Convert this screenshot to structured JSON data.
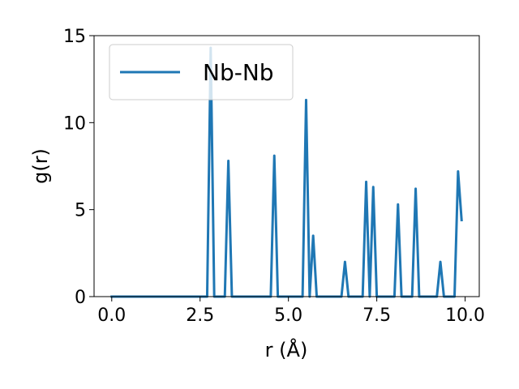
{
  "chart_data": {
    "type": "line",
    "xlabel": "r (Å)",
    "ylabel": "g(r)",
    "xlim": [
      -0.5,
      10.4
    ],
    "ylim": [
      0,
      15
    ],
    "xticks": [
      0.0,
      2.5,
      5.0,
      7.5,
      10.0
    ],
    "xtick_labels": [
      "0.0",
      "2.5",
      "5.0",
      "7.5",
      "10.0"
    ],
    "yticks": [
      0,
      5,
      10,
      15
    ],
    "ytick_labels": [
      "0",
      "5",
      "10",
      "15"
    ],
    "grid": false,
    "legend_position": "upper-left",
    "series": [
      {
        "name": "Nb-Nb",
        "color": "#1f77b4",
        "x": [
          0.0,
          2.7,
          2.8,
          2.9,
          3.2,
          3.3,
          3.4,
          4.5,
          4.6,
          4.7,
          5.4,
          5.5,
          5.6,
          5.7,
          5.8,
          6.5,
          6.6,
          6.7,
          7.1,
          7.2,
          7.3,
          7.4,
          7.5,
          8.0,
          8.1,
          8.2,
          8.5,
          8.6,
          8.7,
          9.2,
          9.3,
          9.4,
          9.7,
          9.8,
          9.9
        ],
        "y": [
          0,
          0,
          14.3,
          0,
          0,
          7.8,
          0,
          0,
          8.1,
          0,
          0,
          11.3,
          0,
          3.5,
          0,
          0,
          2.0,
          0,
          0,
          6.6,
          0,
          6.3,
          0,
          0,
          5.3,
          0,
          0,
          6.2,
          0,
          0,
          2.0,
          0,
          0,
          7.2,
          4.4
        ]
      }
    ]
  }
}
